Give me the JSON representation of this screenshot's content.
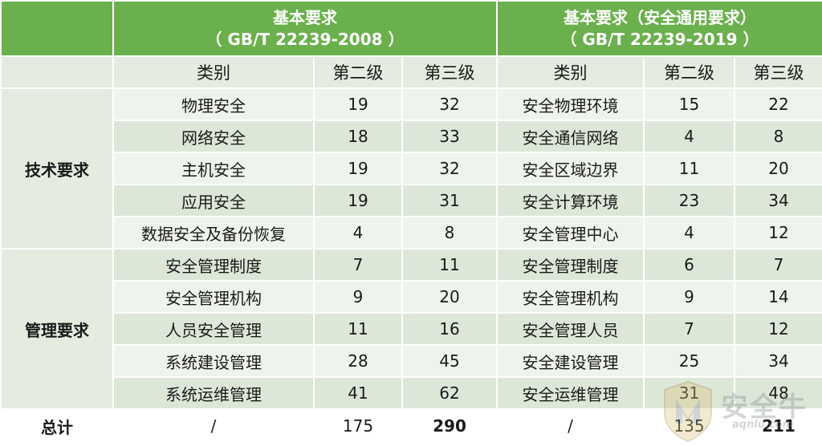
{
  "header": {
    "left_title": "基本要求",
    "left_std": "（ GB/T 22239-2008 ）",
    "right_title": "基本要求（安全通用要求）",
    "right_std": "（ GB/T 22239-2019 ）"
  },
  "subheader": {
    "category": "类别",
    "level2": "第二级",
    "level3": "第三级"
  },
  "groups": {
    "tech": "技术要求",
    "mgmt": "管理要求"
  },
  "rows": [
    {
      "old_cat": "物理安全",
      "old_l2": "19",
      "old_l3": "32",
      "new_cat": "安全物理环境",
      "new_l2": "15",
      "new_l3": "22"
    },
    {
      "old_cat": "网络安全",
      "old_l2": "18",
      "old_l3": "33",
      "new_cat": "安全通信网络",
      "new_l2": "4",
      "new_l3": "8"
    },
    {
      "old_cat": "主机安全",
      "old_l2": "19",
      "old_l3": "32",
      "new_cat": "安全区域边界",
      "new_l2": "11",
      "new_l3": "20"
    },
    {
      "old_cat": "应用安全",
      "old_l2": "19",
      "old_l3": "31",
      "new_cat": "安全计算环境",
      "new_l2": "23",
      "new_l3": "34"
    },
    {
      "old_cat": "数据安全及备份恢复",
      "old_l2": "4",
      "old_l3": "8",
      "new_cat": "安全管理中心",
      "new_l2": "4",
      "new_l3": "12"
    },
    {
      "old_cat": "安全管理制度",
      "old_l2": "7",
      "old_l3": "11",
      "new_cat": "安全管理制度",
      "new_l2": "6",
      "new_l3": "7"
    },
    {
      "old_cat": "安全管理机构",
      "old_l2": "9",
      "old_l3": "20",
      "new_cat": "安全管理机构",
      "new_l2": "9",
      "new_l3": "14"
    },
    {
      "old_cat": "人员安全管理",
      "old_l2": "11",
      "old_l3": "16",
      "new_cat": "安全管理人员",
      "new_l2": "7",
      "new_l3": "12"
    },
    {
      "old_cat": "系统建设管理",
      "old_l2": "28",
      "old_l3": "45",
      "new_cat": "安全建设管理",
      "new_l2": "25",
      "new_l3": "34"
    },
    {
      "old_cat": "系统运维管理",
      "old_l2": "41",
      "old_l3": "62",
      "new_cat": "安全运维管理",
      "new_l2": "31",
      "new_l3": "48"
    }
  ],
  "total": {
    "label": "总计",
    "old_cat": "/",
    "old_l2": "175",
    "old_l3": "290",
    "new_cat": "/",
    "new_l2": "135",
    "new_l3": "211"
  },
  "watermark": {
    "text": "安全牛",
    "sub": "aqniu.com",
    "icon": "shield-logo-icon"
  },
  "colors": {
    "header_green": "#6ab04c",
    "subheader": "#e3ecdf",
    "row_light": "#eff3ed",
    "row_dark": "#dde7d8"
  }
}
